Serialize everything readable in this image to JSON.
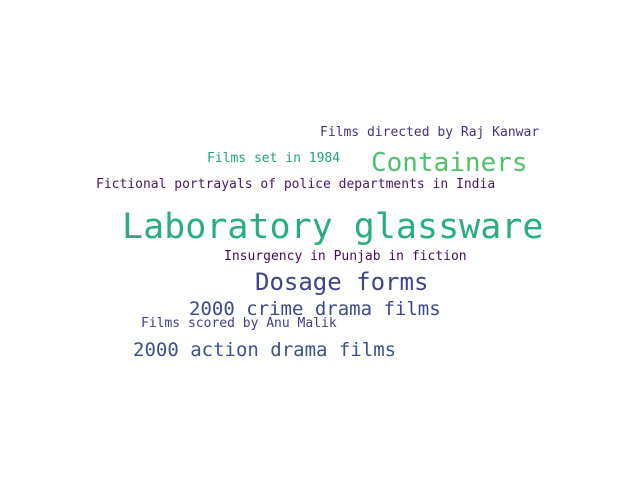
{
  "words": [
    {
      "text": "Films directed by Raj Kanwar",
      "color": "#46337e"
    },
    {
      "text": "Films set in 1984",
      "color": "#23a083"
    },
    {
      "text": "Containers",
      "color": "#4fc36a"
    },
    {
      "text": "Fictional portrayals of police departments in India",
      "color": "#48186a"
    },
    {
      "text": "Laboratory glassware",
      "color": "#2aae80"
    },
    {
      "text": "Insurgency in Punjab in fiction",
      "color": "#450d5b"
    },
    {
      "text": "Dosage forms",
      "color": "#414487"
    },
    {
      "text": "2000 crime drama films",
      "color": "#3e4a89"
    },
    {
      "text": "Films scored by Anu Malik",
      "color": "#433e85"
    },
    {
      "text": "2000 action drama films",
      "color": "#3b528b"
    }
  ]
}
